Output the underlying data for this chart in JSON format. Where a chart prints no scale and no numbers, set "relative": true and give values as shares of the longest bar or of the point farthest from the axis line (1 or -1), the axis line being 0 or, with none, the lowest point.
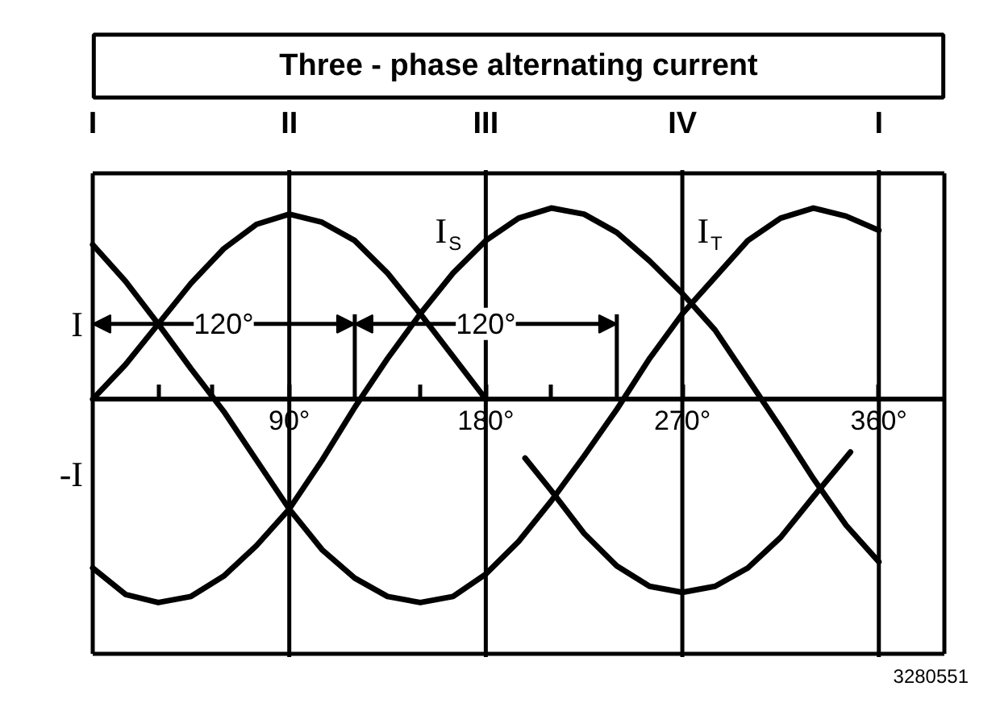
{
  "chart_data": {
    "type": "line",
    "title": "Three - phase alternating current",
    "relative": true,
    "xlim": [
      0,
      390
    ],
    "xticks": [
      {
        "value": 30,
        "label": null
      },
      {
        "value": 55,
        "label": null
      },
      {
        "value": 90,
        "label": "90°"
      },
      {
        "value": 150,
        "label": null
      },
      {
        "value": 180,
        "label": "180°"
      },
      {
        "value": 210,
        "label": null
      },
      {
        "value": 270,
        "label": "270°"
      },
      {
        "value": 360,
        "label": "360°"
      }
    ],
    "series": [
      {
        "color": "#000000",
        "x": [
          0,
          15,
          30,
          45,
          60,
          75,
          90,
          105,
          120,
          135,
          150,
          165,
          180,
          189,
          198,
          210,
          225,
          240,
          255,
          270,
          285,
          300,
          315,
          330,
          347
        ],
        "values": [
          0,
          0.17,
          0.37,
          0.57,
          0.74,
          0.86,
          0.91,
          0.87,
          0.78,
          0.62,
          0.42,
          0.21,
          0,
          null,
          -0.29,
          -0.45,
          -0.66,
          -0.82,
          -0.92,
          -0.95,
          -0.92,
          -0.83,
          -0.68,
          -0.48,
          -0.26
        ]
      },
      {
        "name": "I$_{S}$",
        "color": "#000000",
        "x": [
          0,
          15,
          30,
          45,
          60,
          75,
          90,
          105,
          120,
          135,
          150,
          165,
          180,
          195,
          210,
          225,
          240,
          255,
          270,
          285,
          300,
          315,
          330,
          345,
          360
        ],
        "values": [
          -0.83,
          -0.96,
          -1.0,
          -0.97,
          -0.87,
          -0.72,
          -0.54,
          -0.3,
          -0.04,
          0.2,
          0.42,
          0.62,
          0.78,
          0.89,
          0.94,
          0.91,
          0.82,
          0.68,
          0.52,
          0.34,
          0.1,
          -0.14,
          -0.39,
          -0.62,
          -0.8
        ]
      },
      {
        "name": "I$_{T}$",
        "color": "#000000",
        "x": [
          0,
          15,
          30,
          45,
          60,
          75,
          90,
          105,
          120,
          135,
          150,
          165,
          180,
          195,
          210,
          225,
          240,
          255,
          270,
          285,
          300,
          315,
          330,
          345,
          360
        ],
        "values": [
          0.76,
          0.58,
          0.37,
          0.15,
          -0.06,
          -0.3,
          -0.54,
          -0.74,
          -0.88,
          -0.97,
          -1.0,
          -0.97,
          -0.86,
          -0.7,
          -0.5,
          -0.28,
          -0.05,
          0.2,
          0.42,
          0.6,
          0.78,
          0.89,
          0.94,
          0.9,
          0.83
        ]
      }
    ],
    "ref_lines": [
      {
        "axis": "x",
        "value": 90,
        "color": "#000000"
      },
      {
        "axis": "x",
        "value": 180,
        "color": "#000000"
      },
      {
        "axis": "x",
        "value": 270,
        "color": "#000000"
      },
      {
        "axis": "x",
        "value": 360,
        "color": "#000000"
      }
    ],
    "annotations": [
      "I",
      "II",
      "III",
      "IV",
      "I",
      {
        "text": "120°",
        "x": 60,
        "y": 0.37
      },
      {
        "text": "120°",
        "x": 180,
        "y": 0.37
      },
      "I",
      "-I",
      "3280551"
    ]
  }
}
